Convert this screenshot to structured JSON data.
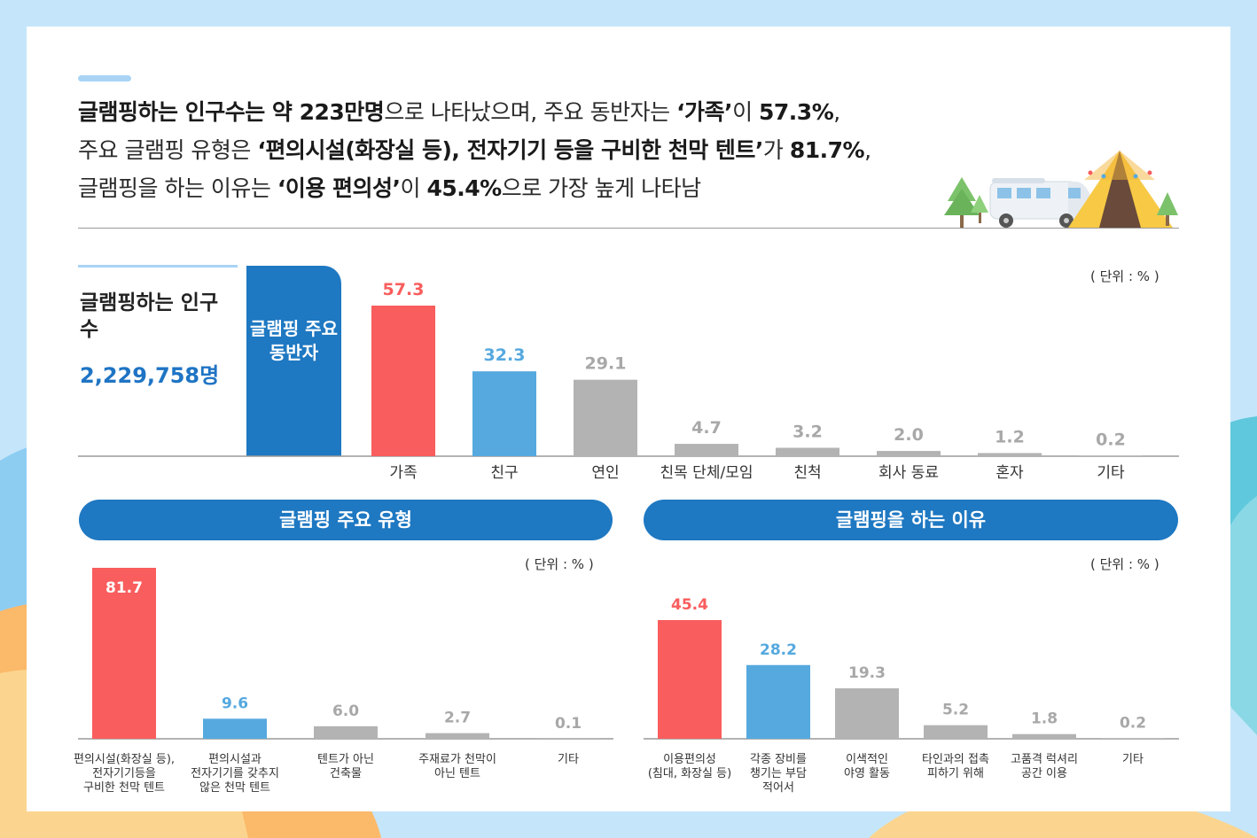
{
  "colors": {
    "red": "#f95d5d",
    "blue": "#56a9df",
    "gray": "#b3b3b3",
    "dark_blue": "#1e78c2"
  },
  "headline": {
    "line1": [
      {
        "text": "글램핑하는 인구수는 약 223만명",
        "bold": true
      },
      {
        "text": "으로 나타났으며, 주요 동반자는 ",
        "bold": false
      },
      {
        "text": "‘가족’",
        "bold": true
      },
      {
        "text": "이 ",
        "bold": false
      },
      {
        "text": "57.3%",
        "bold": true
      },
      {
        "text": ",",
        "bold": false
      }
    ],
    "line2": [
      {
        "text": "주요 글램핑 유형은 ",
        "bold": false
      },
      {
        "text": "‘편의시설(화장실 등), 전자기기 등을 구비한 천막 텐트’",
        "bold": true
      },
      {
        "text": "가 ",
        "bold": false
      },
      {
        "text": "81.7%",
        "bold": true
      },
      {
        "text": ",",
        "bold": false
      }
    ],
    "line3": [
      {
        "text": "글램핑을 하는 이유는 ",
        "bold": false
      },
      {
        "text": "‘이용 편의성’",
        "bold": true
      },
      {
        "text": "이 ",
        "bold": false
      },
      {
        "text": "45.4%",
        "bold": true
      },
      {
        "text": "으로 가장 높게 나타남",
        "bold": false
      }
    ]
  },
  "population": {
    "title": "글램핑하는 인구 수",
    "value": "2,229,758명"
  },
  "companion_block_label": "글램핑 주요 동반자",
  "type_header": "글램핑 주요 유형",
  "reason_header": "글램핑을 하는 이유",
  "units": {
    "companion": "( 단위 : % )",
    "type": "( 단위 : % )",
    "reason": "( 단위 : % )"
  },
  "chart_data": [
    {
      "type": "bar",
      "title": "글램핑 주요 동반자",
      "unit": "%",
      "categories": [
        "가족",
        "친구",
        "연인",
        "친목 단체/모임",
        "친척",
        "회사 동료",
        "혼자",
        "기타"
      ],
      "values": [
        57.3,
        32.3,
        29.1,
        4.7,
        3.2,
        2.0,
        1.2,
        0.2
      ],
      "value_labels": [
        "57.3",
        "32.3",
        "29.1",
        "4.7",
        "3.2",
        "2.0",
        "1.2",
        "0.2"
      ],
      "bar_colors": [
        "red",
        "blue",
        "gray",
        "gray",
        "gray",
        "gray",
        "gray",
        "gray"
      ]
    },
    {
      "type": "bar",
      "title": "글램핑 주요 유형",
      "unit": "%",
      "categories": [
        [
          "편의시설(화장실 등),",
          "전자기기등을",
          "구비한 천막 텐트"
        ],
        [
          "편의시설과",
          "전자기기를 갖추지",
          "않은 천막 텐트"
        ],
        [
          "텐트가 아닌",
          "건축물"
        ],
        [
          "주재료가 천막이",
          "아닌 텐트"
        ],
        [
          "기타"
        ]
      ],
      "values": [
        81.7,
        9.6,
        6.0,
        2.7,
        0.1
      ],
      "value_labels": [
        "81.7",
        "9.6",
        "6.0",
        "2.7",
        "0.1"
      ],
      "bar_colors": [
        "red",
        "blue",
        "gray",
        "gray",
        "gray"
      ]
    },
    {
      "type": "bar",
      "title": "글램핑을 하는 이유",
      "unit": "%",
      "categories": [
        [
          "이용편의성",
          "(침대, 화장실 등)"
        ],
        [
          "각종 장비를",
          "챙기는 부담",
          "적어서"
        ],
        [
          "이색적인",
          "야영 활동"
        ],
        [
          "타인과의 접촉",
          "피하기 위해"
        ],
        [
          "고품격 럭셔리",
          "공간 이용"
        ],
        [
          "기타"
        ]
      ],
      "values": [
        45.4,
        28.2,
        19.3,
        5.2,
        1.8,
        0.2
      ],
      "value_labels": [
        "45.4",
        "28.2",
        "19.3",
        "5.2",
        "1.8",
        "0.2"
      ],
      "bar_colors": [
        "red",
        "blue",
        "gray",
        "gray",
        "gray",
        "gray"
      ]
    }
  ]
}
